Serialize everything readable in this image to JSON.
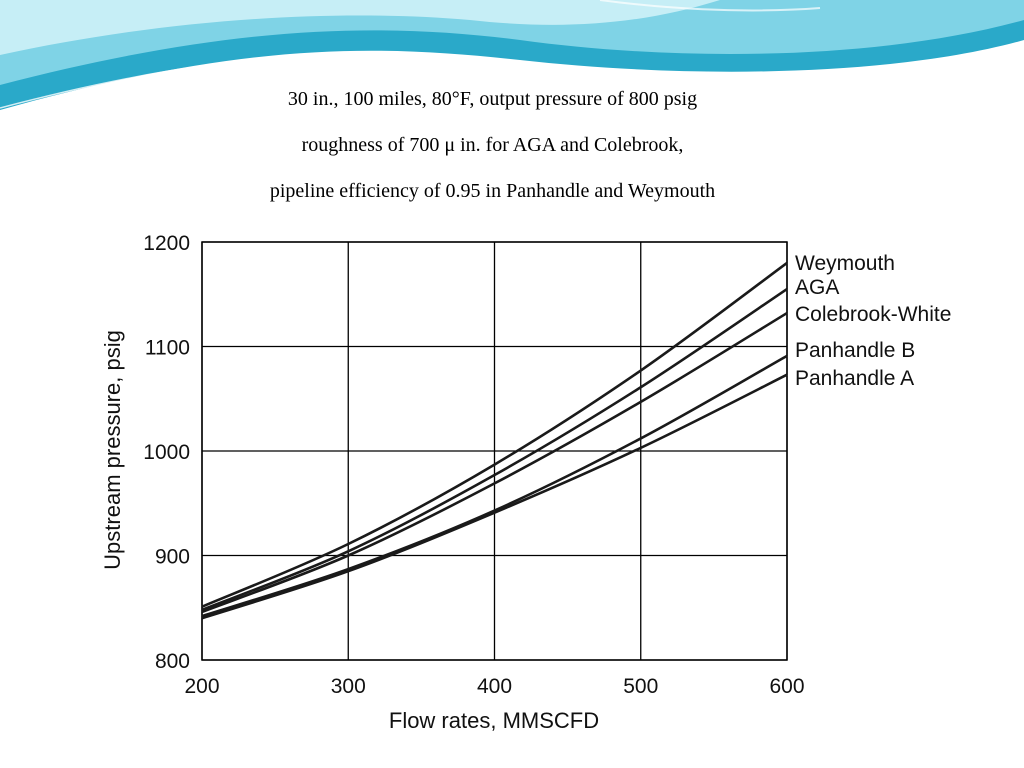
{
  "caption": {
    "line1": "30 in., 100 miles, 80°F, output pressure of 800 psig",
    "line2": "roughness of 700 μ in. for AGA and Colebrook,",
    "line3": "pipeline efficiency of 0.95 in Panhandle and Weymouth"
  },
  "theme": {
    "banner_colors": [
      "#2aa9c9",
      "#7fd3e6",
      "#c6eef6"
    ],
    "line_color": "#1a1a1a",
    "grid_color": "#000000"
  },
  "chart_data": {
    "type": "line",
    "title": "",
    "xlabel": "Flow rates, MMSCFD",
    "ylabel": "Upstream pressure, psig",
    "xlim": [
      200,
      600
    ],
    "ylim": [
      800,
      1200
    ],
    "xticks": [
      200,
      300,
      400,
      500,
      600
    ],
    "yticks": [
      800,
      900,
      1000,
      1100,
      1200
    ],
    "grid": true,
    "legend_placement": "right (labels at line ends)",
    "x": [
      200,
      300,
      400,
      500,
      600
    ],
    "series": [
      {
        "name": "Weymouth",
        "values": [
          851,
          911,
          987,
          1077,
          1180
        ]
      },
      {
        "name": "AGA",
        "values": [
          848,
          904,
          977,
          1061,
          1155
        ]
      },
      {
        "name": "Colebrook-White",
        "values": [
          846,
          900,
          969,
          1047,
          1132
        ]
      },
      {
        "name": "Panhandle B",
        "values": [
          842,
          887,
          943,
          1012,
          1091
        ]
      },
      {
        "name": "Panhandle A",
        "values": [
          840,
          885,
          941,
          1003,
          1073
        ]
      }
    ]
  }
}
